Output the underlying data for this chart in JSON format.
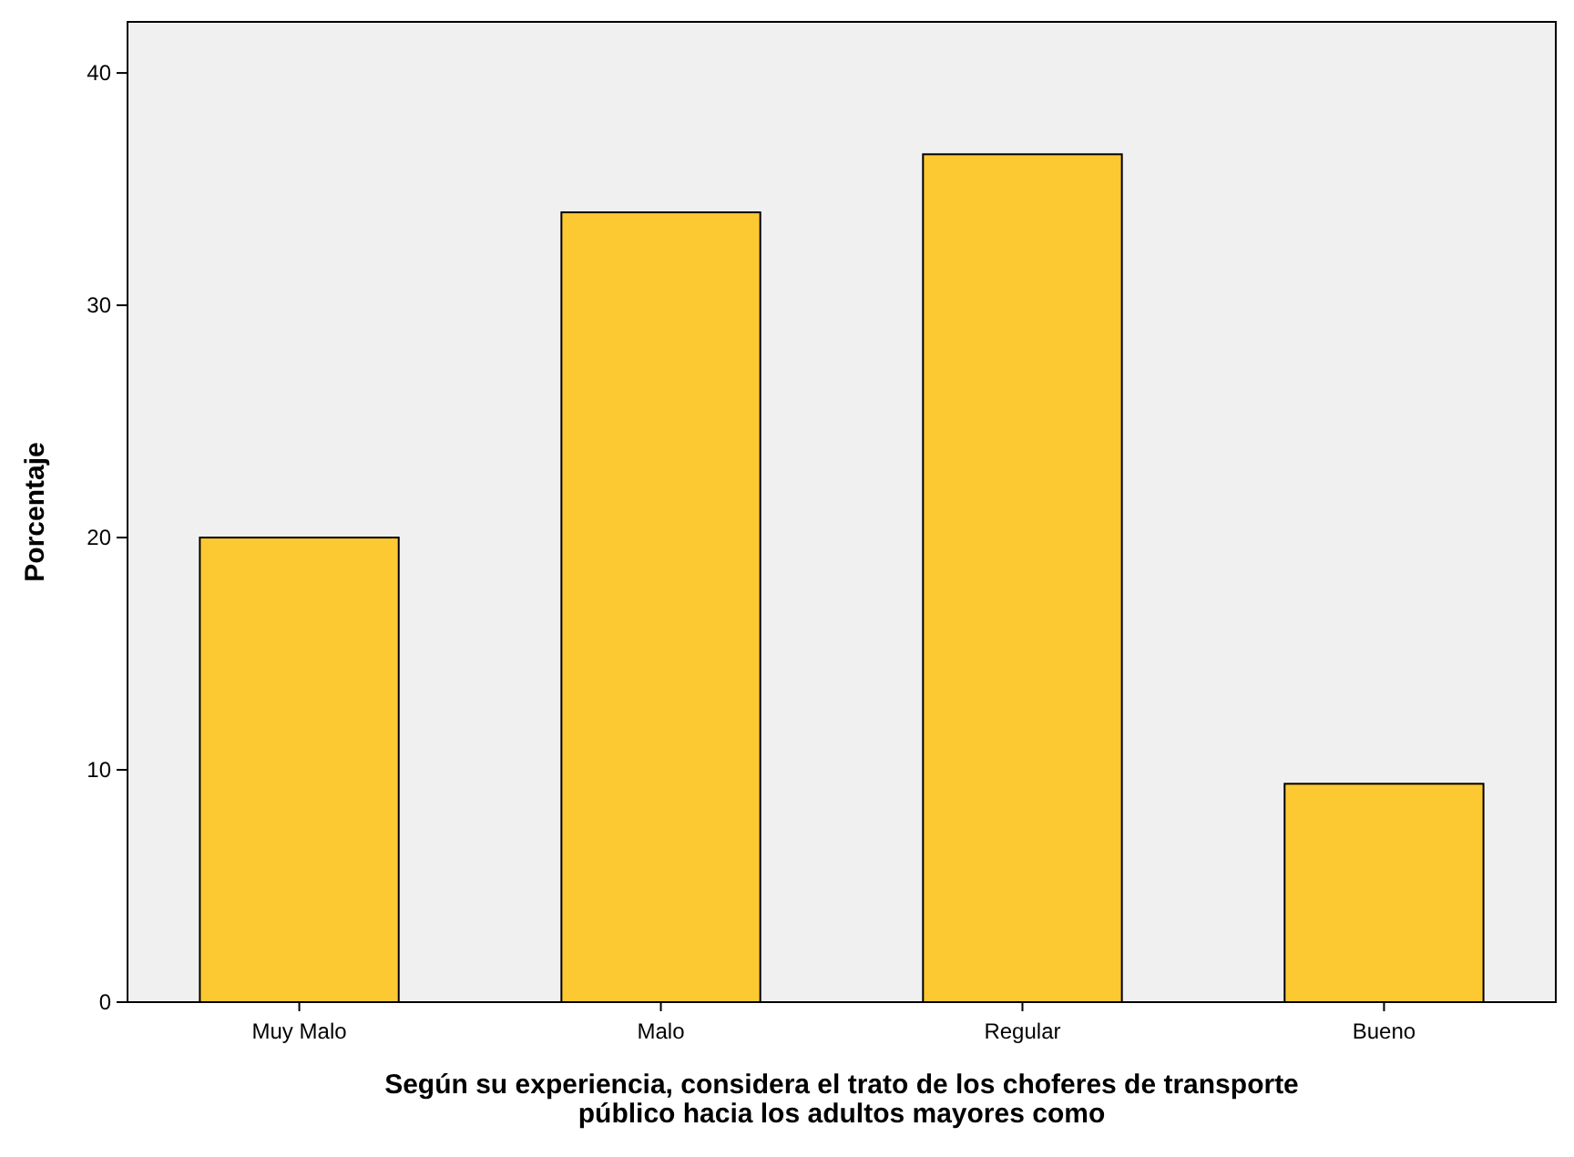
{
  "chart_data": {
    "type": "bar",
    "xlabel": "Según su experiencia, considera el trato de los choferes de transporte público hacia los adultos mayores como",
    "ylabel": "Porcentaje",
    "categories": [
      "Muy Malo",
      "Malo",
      "Regular",
      "Bueno"
    ],
    "values": [
      20.0,
      34.0,
      36.5,
      9.4
    ],
    "color": "#fdc932",
    "ylim": [
      0,
      42.2
    ],
    "yticks": [
      0,
      10,
      20,
      30,
      40
    ],
    "grid": false
  }
}
